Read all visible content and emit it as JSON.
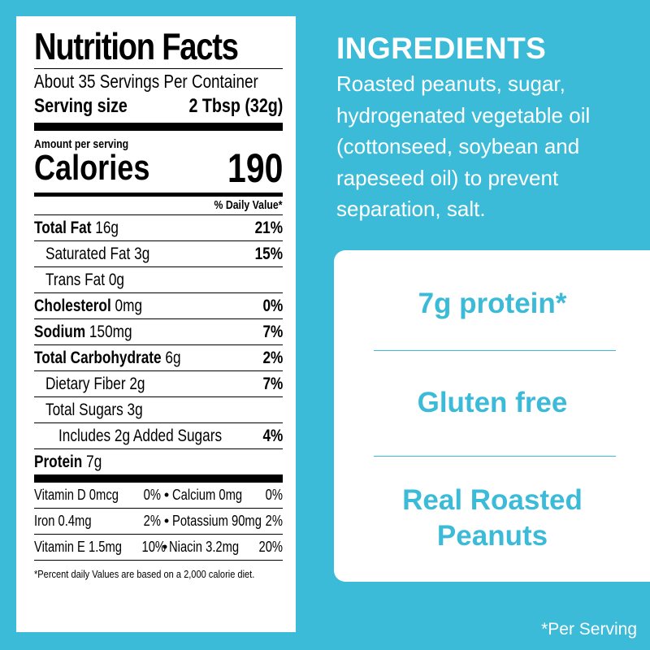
{
  "nutrition": {
    "title": "Nutrition Facts",
    "servings_per_container": "About 35 Servings Per Container",
    "serving_size_label": "Serving size",
    "serving_size_value": "2 Tbsp (32g)",
    "amount_per_serving": "Amount per serving",
    "calories_label": "Calories",
    "calories_value": "190",
    "daily_value_header": "% Daily Value*",
    "rows": [
      {
        "name": "Total Fat",
        "amount": "16g",
        "dv": "21%"
      },
      {
        "name": "Saturated Fat",
        "amount": "3g",
        "dv": "15%"
      },
      {
        "name": "Trans Fat",
        "amount": "0g",
        "dv": ""
      },
      {
        "name": "Cholesterol",
        "amount": "0mg",
        "dv": "0%"
      },
      {
        "name": "Sodium",
        "amount": "150mg",
        "dv": "7%"
      },
      {
        "name": "Total Carbohydrate",
        "amount": "6g",
        "dv": "2%"
      },
      {
        "name": "Dietary Fiber",
        "amount": "2g",
        "dv": "7%"
      },
      {
        "name": "Total Sugars",
        "amount": "3g",
        "dv": ""
      },
      {
        "name": "Includes 2g Added Sugars",
        "amount": "",
        "dv": "4%"
      },
      {
        "name": "Protein",
        "amount": "7g",
        "dv": ""
      }
    ],
    "vitamins": [
      {
        "left": "Vitamin D 0mcg",
        "left_dv": "0%",
        "right": "Calcium 0mg",
        "right_dv": "0%"
      },
      {
        "left": "Iron 0.4mg",
        "left_dv": "2%",
        "right": "Potassium 90mg",
        "right_dv": "2%"
      },
      {
        "left": "Vitamin E 1.5mg",
        "left_dv": "10%",
        "right": "Niacin 3.2mg",
        "right_dv": "20%"
      }
    ],
    "bullet": "•",
    "footnote": "*Percent daily Values are based on a 2,000 calorie diet."
  },
  "ingredients": {
    "title": "INGREDIENTS",
    "lines": [
      "Roasted peanuts, sugar,",
      "hydrogenated vegetable oil",
      "(cottonseed, soybean and",
      "rapeseed oil) to prevent",
      "separation, salt."
    ]
  },
  "claims": {
    "protein": "7g protein*",
    "gluten": "Gluten free",
    "roasted_line1": "Real Roasted",
    "roasted_line2": "Peanuts"
  },
  "per_serving_note": "*Per Serving",
  "colors": {
    "background": "#3bbbd7",
    "card": "#ffffff",
    "label_text": "#000000"
  }
}
